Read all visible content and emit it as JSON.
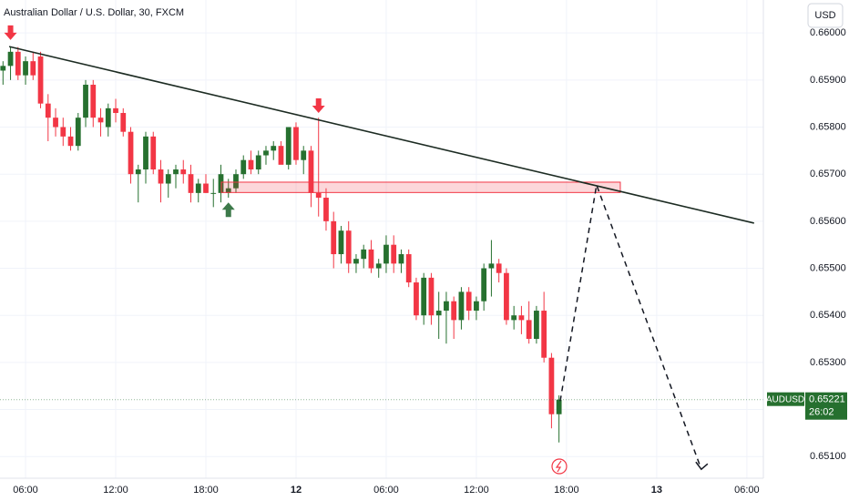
{
  "chart_data": {
    "type": "candlestick",
    "title": "Australian Dollar / U.S. Dollar, 30, FXCM",
    "currency": "USD",
    "symbol": "AUDUSD",
    "last_price": {
      "value": 0.65221,
      "label": "0.65221"
    },
    "countdown": "26:02",
    "up_color": "#26702f",
    "down_color": "#f23645",
    "grid": true,
    "xlim": [
      -19.7,
      31.1
    ],
    "xticks": [
      {
        "value": -18,
        "label": "06:00"
      },
      {
        "value": -12,
        "label": "12:00"
      },
      {
        "value": -6,
        "label": "18:00"
      },
      {
        "value": 0,
        "label": "12"
      },
      {
        "value": 6,
        "label": "06:00"
      },
      {
        "value": 12,
        "label": "12:00"
      },
      {
        "value": 18,
        "label": "18:00"
      },
      {
        "value": 24,
        "label": "13"
      },
      {
        "value": 30,
        "label": "06:00"
      }
    ],
    "ylim": [
      0.65054,
      0.6607
    ],
    "yticks": [
      {
        "value": 0.651,
        "label": "0.65100"
      },
      {
        "value": 0.652,
        "label": "0.65200"
      },
      {
        "value": 0.653,
        "label": "0.65300"
      },
      {
        "value": 0.654,
        "label": "0.65400"
      },
      {
        "value": 0.655,
        "label": "0.65500"
      },
      {
        "value": 0.656,
        "label": "0.65600"
      },
      {
        "value": 0.657,
        "label": "0.65700"
      },
      {
        "value": 0.658,
        "label": "0.65800"
      },
      {
        "value": 0.659,
        "label": "0.65900"
      },
      {
        "value": 0.66,
        "label": "0.66000"
      }
    ],
    "x": [
      -19.5,
      -19,
      -18.5,
      -18,
      -17.5,
      -17,
      -16.5,
      -16,
      -15.5,
      -15,
      -14.5,
      -14,
      -13.5,
      -13,
      -12.5,
      -12,
      -11.5,
      -11,
      -10.5,
      -10,
      -9.5,
      -9,
      -8.5,
      -8,
      -7.5,
      -7,
      -6.5,
      -6,
      -5.5,
      -5,
      -4.5,
      -4,
      -3.5,
      -3,
      -2.5,
      -2,
      -1.5,
      -1,
      -0.5,
      0,
      0.5,
      1,
      1.5,
      2,
      2.5,
      3,
      3.5,
      4,
      4.5,
      5,
      5.5,
      6,
      6.5,
      7,
      7.5,
      8,
      8.5,
      9,
      9.5,
      10,
      10.5,
      11,
      11.5,
      12,
      12.5,
      13,
      13.5,
      14,
      14.5,
      15,
      15.5,
      16,
      16.5,
      17,
      17.5
    ],
    "open": [
      0.6592,
      0.6593,
      0.6596,
      0.6591,
      0.6594,
      0.6595,
      0.6585,
      0.6582,
      0.658,
      0.6578,
      0.6576,
      0.6582,
      0.6589,
      0.6582,
      0.658,
      0.6584,
      0.6583,
      0.6579,
      0.657,
      0.6571,
      0.6578,
      0.6571,
      0.6568,
      0.657,
      0.6571,
      0.657,
      0.6566,
      0.6568,
      0.6566,
      0.6566,
      0.6566,
      0.6567,
      0.657,
      0.6573,
      0.6571,
      0.6574,
      0.6575,
      0.6576,
      0.6572,
      0.658,
      0.6573,
      0.6575,
      0.6566,
      0.6565,
      0.656,
      0.6553,
      0.6558,
      0.6551,
      0.6552,
      0.6554,
      0.655,
      0.6551,
      0.6555,
      0.6551,
      0.6553,
      0.6547,
      0.654,
      0.6548,
      0.654,
      0.6541,
      0.6543,
      0.6539,
      0.6545,
      0.6541,
      0.6543,
      0.655,
      0.6551,
      0.6549,
      0.6539,
      0.654,
      0.6539,
      0.6535,
      0.6541,
      0.6531,
      0.6519
    ],
    "high": [
      0.6594,
      0.6597,
      0.6597,
      0.6595,
      0.6596,
      0.6596,
      0.6587,
      0.6584,
      0.6582,
      0.658,
      0.6583,
      0.659,
      0.659,
      0.6584,
      0.6585,
      0.6586,
      0.6584,
      0.658,
      0.6572,
      0.6579,
      0.6579,
      0.6573,
      0.6571,
      0.6572,
      0.6573,
      0.6572,
      0.6569,
      0.657,
      0.6569,
      0.6572,
      0.6569,
      0.6571,
      0.6574,
      0.6575,
      0.6575,
      0.6576,
      0.6577,
      0.6577,
      0.658,
      0.6581,
      0.6576,
      0.6576,
      0.6582,
      0.6567,
      0.6562,
      0.6559,
      0.656,
      0.6553,
      0.6555,
      0.6556,
      0.6552,
      0.6557,
      0.6557,
      0.6554,
      0.6554,
      0.6548,
      0.6549,
      0.6549,
      0.6545,
      0.6545,
      0.6544,
      0.6546,
      0.6546,
      0.6544,
      0.6551,
      0.6556,
      0.6552,
      0.655,
      0.6542,
      0.6542,
      0.6543,
      0.6542,
      0.6545,
      0.6532,
      0.6523
    ],
    "low": [
      0.6589,
      0.659,
      0.659,
      0.6589,
      0.659,
      0.6584,
      0.6577,
      0.6578,
      0.6576,
      0.6575,
      0.6575,
      0.658,
      0.658,
      0.6578,
      0.6578,
      0.6581,
      0.6578,
      0.6568,
      0.6564,
      0.6568,
      0.657,
      0.6564,
      0.6565,
      0.6567,
      0.6568,
      0.6564,
      0.6564,
      0.6566,
      0.6563,
      0.6564,
      0.6565,
      0.6566,
      0.6569,
      0.657,
      0.657,
      0.6572,
      0.6573,
      0.6573,
      0.6571,
      0.6572,
      0.657,
      0.6563,
      0.6561,
      0.6558,
      0.655,
      0.6551,
      0.6549,
      0.6549,
      0.655,
      0.6549,
      0.6548,
      0.6549,
      0.6549,
      0.6549,
      0.6546,
      0.6539,
      0.6538,
      0.6538,
      0.6535,
      0.6534,
      0.6535,
      0.6537,
      0.6539,
      0.6539,
      0.6541,
      0.6544,
      0.6547,
      0.6538,
      0.6537,
      0.6536,
      0.6534,
      0.6534,
      0.653,
      0.6516,
      0.6513
    ],
    "close": [
      0.6593,
      0.6596,
      0.6591,
      0.6594,
      0.6591,
      0.6585,
      0.6582,
      0.658,
      0.6578,
      0.6576,
      0.6582,
      0.6589,
      0.6582,
      0.6581,
      0.6584,
      0.6583,
      0.6579,
      0.657,
      0.6571,
      0.6578,
      0.6571,
      0.6568,
      0.657,
      0.6571,
      0.657,
      0.6566,
      0.6568,
      0.6566,
      0.6566,
      0.657,
      0.6567,
      0.657,
      0.6573,
      0.6571,
      0.6574,
      0.6575,
      0.6576,
      0.6572,
      0.658,
      0.6573,
      0.6575,
      0.6566,
      0.6565,
      0.656,
      0.6553,
      0.6558,
      0.6551,
      0.6552,
      0.6554,
      0.655,
      0.6551,
      0.6555,
      0.6551,
      0.6553,
      0.6547,
      0.654,
      0.6548,
      0.654,
      0.6541,
      0.6543,
      0.6539,
      0.6545,
      0.6541,
      0.6543,
      0.655,
      0.6551,
      0.6549,
      0.6539,
      0.654,
      0.6539,
      0.6535,
      0.6541,
      0.6531,
      0.6519,
      0.65221
    ],
    "trendline": {
      "x": [
        -19.09,
        30.48
      ],
      "y": [
        0.65971,
        0.65596
      ],
      "color": "#1c2b22"
    },
    "zone": {
      "x": [
        -4.97,
        21.58
      ],
      "y": [
        0.65661,
        0.65683
      ],
      "color": "#f23645"
    },
    "projection": {
      "x": [
        17.58,
        20.0,
        26.97
      ],
      "y": [
        0.65218,
        0.65677,
        0.65073
      ]
    },
    "arrows": [
      {
        "x": -19.0,
        "y": 0.65985,
        "direction": "down",
        "color": "#f23645"
      },
      {
        "x": 1.5,
        "y": 0.6583,
        "direction": "down",
        "color": "#f23645"
      },
      {
        "x": -4.5,
        "y": 0.6564,
        "direction": "up",
        "color": "#3d7a4a"
      }
    ]
  }
}
